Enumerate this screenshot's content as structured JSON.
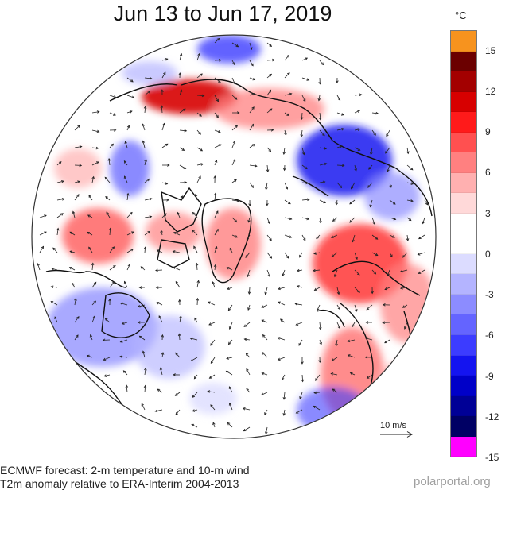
{
  "title": "Jun 13 to Jun 17, 2019",
  "colorbar": {
    "unit": "°C",
    "ticks": [
      "15",
      "12",
      "9",
      "6",
      "3",
      "0",
      "-3",
      "-6",
      "-9",
      "-12",
      "-15"
    ],
    "colors": [
      "#f7931e",
      "#6b0000",
      "#a30000",
      "#d70000",
      "#ff1a1a",
      "#ff5050",
      "#ff8080",
      "#ffb0b0",
      "#ffd9d9",
      "#ffffff",
      "#ffffff",
      "#dcdcff",
      "#b4b4ff",
      "#8c8cff",
      "#6464ff",
      "#3c3cff",
      "#1414f0",
      "#0000c8",
      "#000096",
      "#000064",
      "#ff00ff"
    ]
  },
  "wind_scale": {
    "label": "10 m/s"
  },
  "footer": {
    "line1": "ECMWF forecast: 2-m temperature and 10-m wind",
    "line2": "T2m anomaly relative to ERA-Interim 2004-2013",
    "credit": "polarportal.org"
  },
  "map": {
    "projection": "north-polar-stereographic",
    "anomalies": [
      {
        "region": "northern Europe / Scandinavia",
        "sign": "warm"
      },
      {
        "region": "Greenland",
        "sign": "warm"
      },
      {
        "region": "Alaska / Bering Sea",
        "sign": "warm"
      },
      {
        "region": "western Canada",
        "sign": "warm"
      },
      {
        "region": "eastern Siberia",
        "sign": "cold"
      },
      {
        "region": "north-west Russia",
        "sign": "cold"
      },
      {
        "region": "eastern Canada",
        "sign": "cold"
      },
      {
        "region": "North Atlantic",
        "sign": "cold"
      }
    ]
  }
}
